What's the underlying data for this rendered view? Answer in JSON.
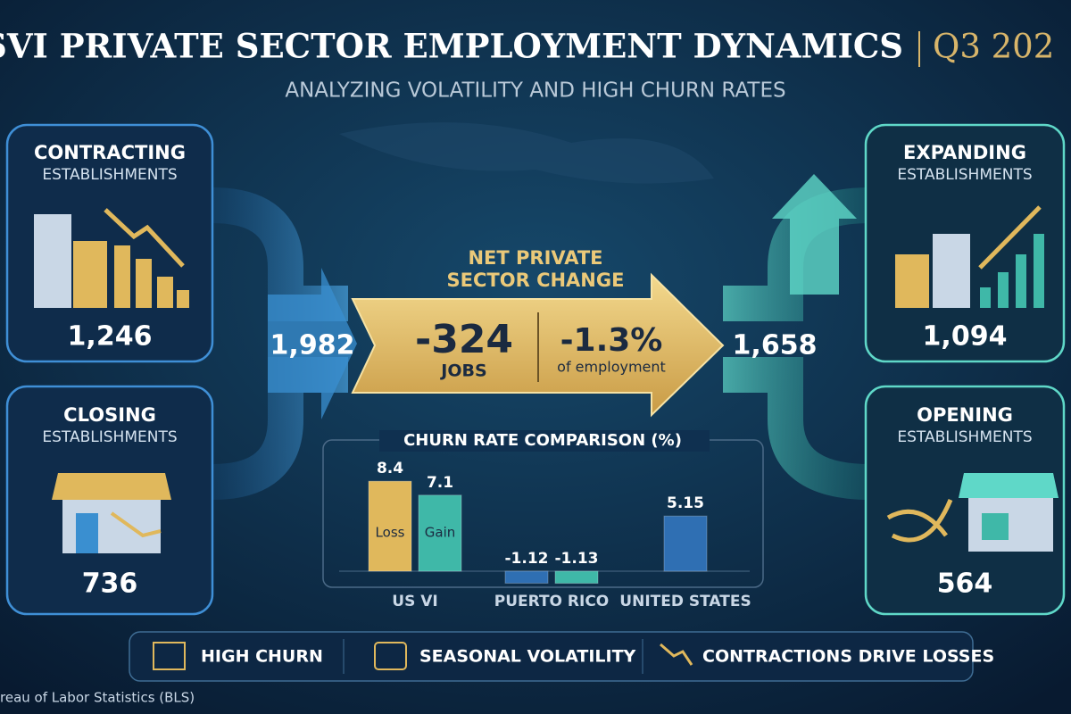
{
  "header": {
    "title": "USVI PRIVATE SECTOR EMPLOYMENT DYNAMICS",
    "period": "Q3 202",
    "subtitle": "ANALYZING VOLATILITY AND HIGH CHURN RATES"
  },
  "panels": {
    "contracting": {
      "title": "CONTRACTING",
      "subtitle": "ESTABLISHMENTS",
      "value": "1,246"
    },
    "closing": {
      "title": "CLOSING",
      "subtitle": "ESTABLISHMENTS",
      "value": "736"
    },
    "expanding": {
      "title": "EXPANDING",
      "subtitle": "ESTABLISHMENTS",
      "value": "1,094"
    },
    "opening": {
      "title": "OPENING",
      "subtitle": "ESTABLISHMENTS",
      "value": "564"
    }
  },
  "flow": {
    "losses": "1,982",
    "gains": "1,658"
  },
  "net_change": {
    "lines": [
      "NET PRIVATE",
      "SECTOR CHANGE"
    ],
    "jobs": "-324",
    "jobs_unit": "JOBS",
    "percent": "-1.3%",
    "percent_unit": "of employment"
  },
  "chart_data": {
    "type": "bar",
    "title": "CHURN RATE COMPARISON (%)",
    "groups": [
      {
        "label": "US VI",
        "bars": [
          {
            "value": 8.4,
            "label": "Loss",
            "color": "#e0b85c"
          },
          {
            "value": 7.1,
            "label": "Gain",
            "color": "#3fb8a8"
          }
        ]
      },
      {
        "label": "PUERTO RICO",
        "bars": [
          {
            "value": -1.12,
            "color": "#2f6fb3"
          },
          {
            "value": -1.13,
            "color": "#3fb8a8"
          }
        ]
      },
      {
        "label": "UNITED STATES",
        "bars": [
          {
            "value": 5.15,
            "color": "#2f6fb3"
          }
        ]
      }
    ]
  },
  "footer": {
    "items": [
      "HIGH CHURN",
      "SEASONAL VOLATILITY",
      "CONTRACTIONS DRIVE LOSSES"
    ],
    "source": "reau of Labor Statistics (BLS)"
  }
}
